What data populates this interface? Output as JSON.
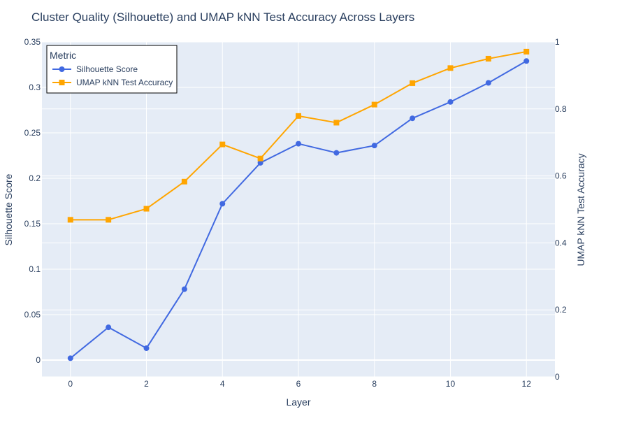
{
  "chart_data": {
    "type": "line",
    "title": "Cluster Quality (Silhouette) and UMAP kNN Test Accuracy Across Layers",
    "xlabel": "Layer",
    "ylabel_left": "Silhouette Score",
    "ylabel_right": "UMAP kNN Test Accuracy",
    "legend_title": "Metric",
    "legend_position": "top-left",
    "xlim": [
      -0.75,
      12.75
    ],
    "ylim_left": [
      -0.0185,
      0.35
    ],
    "ylim_right": [
      0,
      1
    ],
    "x_ticks": [
      0,
      2,
      4,
      6,
      8,
      10,
      12
    ],
    "x_tick_labels": [
      "0",
      "2",
      "4",
      "6",
      "8",
      "10",
      "12"
    ],
    "y_left_ticks": [
      0,
      0.05,
      0.1,
      0.15,
      0.2,
      0.25,
      0.3,
      0.35
    ],
    "y_left_tick_labels": [
      "0",
      "0.05",
      "0.1",
      "0.15",
      "0.2",
      "0.25",
      "0.3",
      "0.35"
    ],
    "y_right_ticks": [
      0,
      0.2,
      0.4,
      0.6,
      0.8,
      1
    ],
    "y_right_tick_labels": [
      "0",
      "0.2",
      "0.4",
      "0.6",
      "0.8",
      "1"
    ],
    "grid": true,
    "x": [
      0,
      1,
      2,
      3,
      4,
      5,
      6,
      7,
      8,
      9,
      10,
      11,
      12
    ],
    "series": [
      {
        "name": "Silhouette Score",
        "axis": "left",
        "marker": "circle",
        "color": "#4169e1",
        "values": [
          0.002,
          0.036,
          0.013,
          0.078,
          0.172,
          0.217,
          0.238,
          0.228,
          0.236,
          0.266,
          0.284,
          0.305,
          0.329
        ]
      },
      {
        "name": "UMAP kNN Test Accuracy",
        "axis": "right",
        "marker": "square",
        "color": "#ffa500",
        "values": [
          0.469,
          0.469,
          0.502,
          0.583,
          0.694,
          0.652,
          0.779,
          0.759,
          0.813,
          0.877,
          0.922,
          0.95,
          0.971
        ]
      }
    ],
    "colors": {
      "plot_background": "#e5ecf6",
      "grid": "#ffffff",
      "text": "#2a3f5f"
    }
  }
}
